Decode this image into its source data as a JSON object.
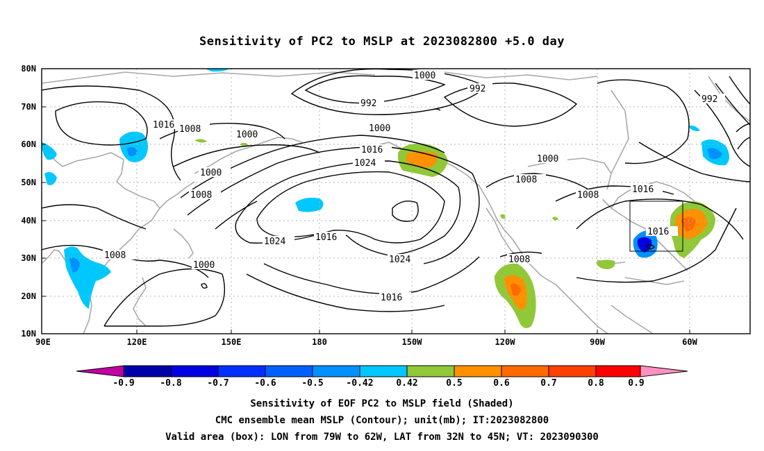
{
  "title": "Sensitivity of PC2 to MSLP at 2023082800 +5.0 day",
  "map": {
    "lat_labels": [
      "80N",
      "70N",
      "60N",
      "50N",
      "40N",
      "30N",
      "20N",
      "10N"
    ],
    "lon_labels": [
      "90E",
      "120E",
      "150E",
      "180",
      "150W",
      "120W",
      "90W",
      "60W"
    ],
    "contour_labels": [
      "1000",
      "992",
      "992",
      "1000",
      "1000",
      "1016",
      "1008",
      "1000",
      "1016",
      "1024",
      "1000",
      "1008",
      "1000",
      "1008",
      "1008",
      "1008",
      "1016",
      "1024",
      "1016",
      "1024",
      "1016",
      "1016",
      "1008",
      "1008",
      "1000",
      "992"
    ],
    "box_label": "valid-area"
  },
  "colorbar": {
    "labels": [
      "-0.9",
      "-0.8",
      "-0.7",
      "-0.6",
      "-0.5",
      "-0.42",
      "0.42",
      "0.5",
      "0.6",
      "0.7",
      "0.8",
      "0.9"
    ],
    "colors": [
      "#c000a0",
      "#0000a8",
      "#0000e0",
      "#0030ff",
      "#0060ff",
      "#0090ff",
      "#00c8ff",
      "#ffffff",
      "#90c838",
      "#ff9000",
      "#ff6a00",
      "#ff4000",
      "#ff0000",
      "#ff90c0"
    ]
  },
  "captions": [
    "Sensitivity of EOF PC2 to MSLP field (Shaded)",
    "CMC ensemble mean MSLP (Contour); unit(mb); IT:2023082800",
    "Valid area (box): LON from 79W to 62W, LAT from 32N to 45N; VT: 2023090300"
  ]
}
